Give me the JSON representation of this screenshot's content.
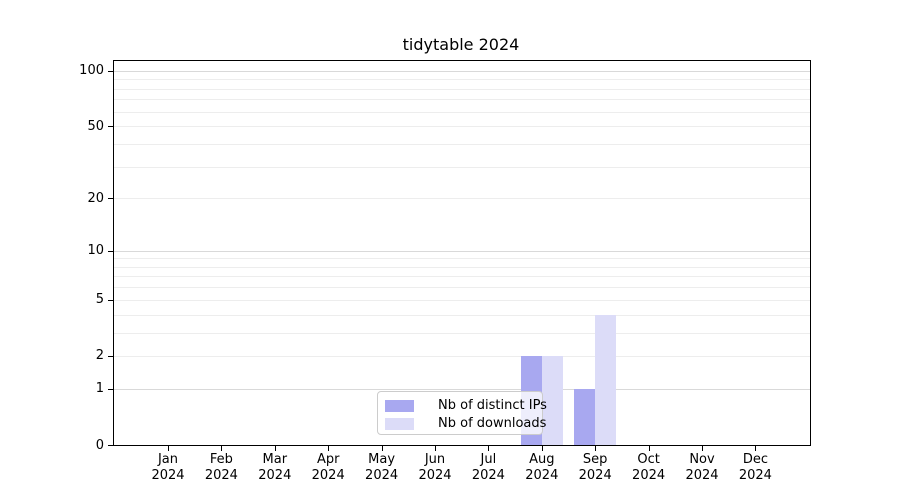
{
  "chart_data": {
    "type": "bar",
    "title": "tidytable 2024",
    "categories": [
      {
        "month": "Jan",
        "year": "2024"
      },
      {
        "month": "Feb",
        "year": "2024"
      },
      {
        "month": "Mar",
        "year": "2024"
      },
      {
        "month": "Apr",
        "year": "2024"
      },
      {
        "month": "May",
        "year": "2024"
      },
      {
        "month": "Jun",
        "year": "2024"
      },
      {
        "month": "Jul",
        "year": "2024"
      },
      {
        "month": "Aug",
        "year": "2024"
      },
      {
        "month": "Sep",
        "year": "2024"
      },
      {
        "month": "Oct",
        "year": "2024"
      },
      {
        "month": "Nov",
        "year": "2024"
      },
      {
        "month": "Dec",
        "year": "2024"
      }
    ],
    "series": [
      {
        "name": "Nb of distinct IPs",
        "color": "#a8a8f0",
        "values": [
          0,
          0,
          0,
          0,
          0,
          0,
          0,
          2,
          1,
          0,
          0,
          0
        ]
      },
      {
        "name": "Nb of downloads",
        "color": "#dcdcf8",
        "values": [
          0,
          0,
          0,
          0,
          0,
          0,
          0,
          2,
          4,
          0,
          0,
          0
        ]
      }
    ],
    "y_axis": {
      "scale": "log1p",
      "ticks": [
        0,
        1,
        2,
        5,
        10,
        20,
        50,
        100
      ],
      "max": 113,
      "minor_gridlines": [
        1,
        2,
        3,
        4,
        5,
        6,
        7,
        8,
        9,
        10,
        20,
        30,
        40,
        50,
        60,
        70,
        80,
        90,
        100
      ],
      "major_gridlines": [
        1,
        10,
        100
      ]
    },
    "legend_position": "bottom-center",
    "grid": "horizontal-only"
  },
  "colors": {
    "background": "#ffffff",
    "frame": "#000000",
    "gridline_minor": "#ededed",
    "gridline_major": "#d9d9d9",
    "legend_border": "#cccccc",
    "bar_distinct_ips": "#a8a8f0",
    "bar_downloads": "#dcdcf8"
  }
}
